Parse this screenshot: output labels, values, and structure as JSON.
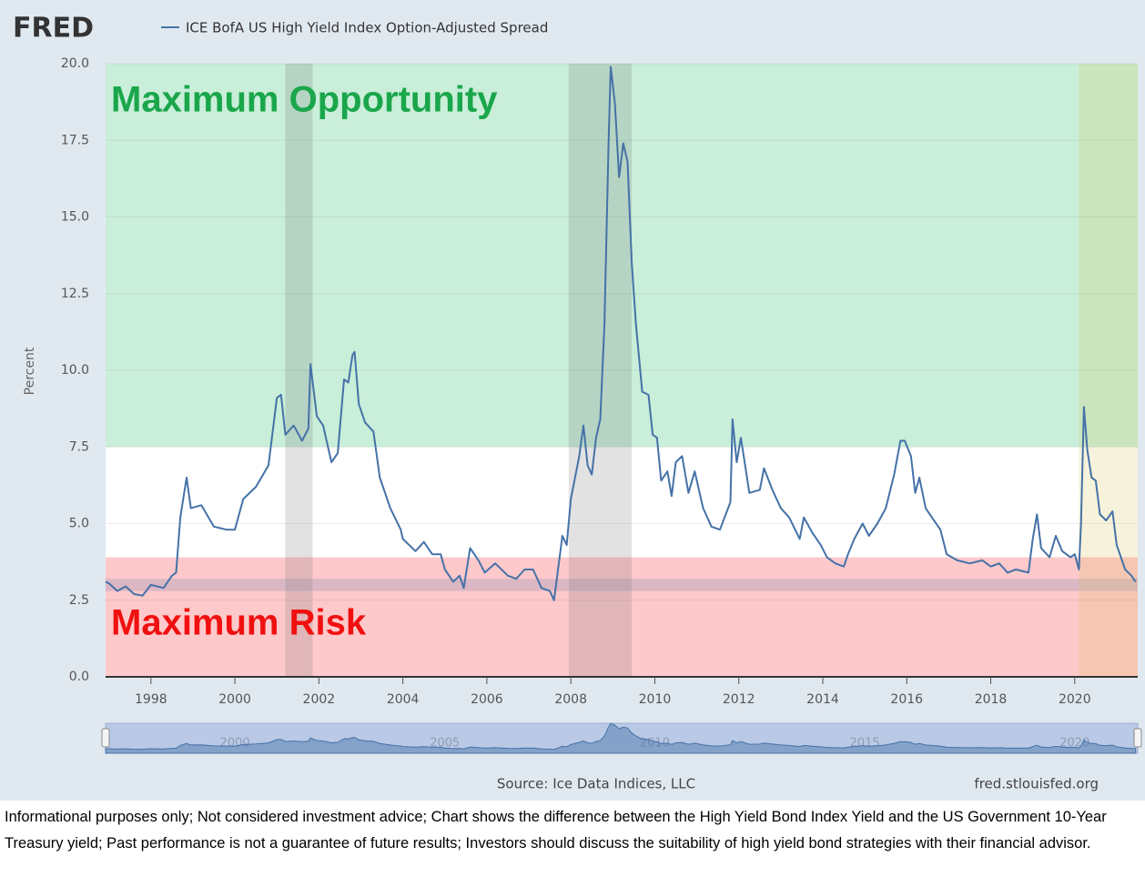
{
  "brand": "FRED",
  "chart_data": {
    "type": "line",
    "legend_label": "ICE BofA US High Yield Index Option-Adjusted Spread",
    "y_label": "Percent",
    "source": "Source: Ice Data Indices, LLC",
    "site": "fred.stlouisfed.org",
    "zones": [
      {
        "label": "Maximum Opportunity",
        "range": [
          7.5,
          20
        ],
        "color": "#c9eed9",
        "text_color": "#1aa64a"
      },
      {
        "label": "Maximum Risk",
        "range": [
          0,
          3.9
        ],
        "color": "#fdc9cb",
        "text_color": "#f01010"
      }
    ],
    "reference_band": {
      "range": [
        2.8,
        3.2
      ],
      "color": "rgba(120,130,170,0.25)"
    },
    "shaded_periods": [
      {
        "range": [
          2001.2,
          2001.85
        ],
        "color": "rgba(110,110,110,0.2)"
      },
      {
        "range": [
          2007.95,
          2009.45
        ],
        "color": "rgba(110,110,110,0.2)"
      },
      {
        "range": [
          2020.1,
          2021.5
        ],
        "color": "rgba(215,190,80,0.2)"
      }
    ],
    "xlim": [
      1996.92,
      2021.5
    ],
    "xticks": [
      1998,
      2000,
      2002,
      2004,
      2006,
      2008,
      2010,
      2012,
      2014,
      2016,
      2018,
      2020
    ],
    "ylim": [
      0,
      20
    ],
    "yticks": [
      {
        "value": 0,
        "label": "0.0"
      },
      2.5,
      {
        "value": 5,
        "label": "5.0"
      },
      7.5,
      {
        "value": 10,
        "label": "10.0"
      },
      12.5,
      {
        "value": 15,
        "label": "15.0"
      },
      17.5,
      {
        "value": 20,
        "label": "20.0"
      }
    ],
    "grid": true,
    "navigator_ticks": [
      2000,
      2005,
      2010,
      2015,
      2020
    ],
    "series": [
      {
        "name": "ICE BofA US High Yield Index Option-Adjusted Spread",
        "color": "#4572a7",
        "x": [
          1996.92,
          1997.0,
          1997.2,
          1997.4,
          1997.6,
          1997.8,
          1998.0,
          1998.3,
          1998.5,
          1998.6,
          1998.7,
          1998.85,
          1998.95,
          1999.2,
          1999.5,
          1999.8,
          2000.0,
          2000.2,
          2000.5,
          2000.8,
          2000.9,
          2001.0,
          2001.1,
          2001.2,
          2001.4,
          2001.6,
          2001.75,
          2001.8,
          2001.95,
          2002.1,
          2002.3,
          2002.45,
          2002.6,
          2002.7,
          2002.8,
          2002.85,
          2002.95,
          2003.1,
          2003.3,
          2003.45,
          2003.7,
          2003.95,
          2004.0,
          2004.3,
          2004.5,
          2004.7,
          2004.9,
          2005.0,
          2005.2,
          2005.35,
          2005.45,
          2005.6,
          2005.8,
          2005.95,
          2006.2,
          2006.5,
          2006.7,
          2006.9,
          2007.1,
          2007.3,
          2007.5,
          2007.6,
          2007.8,
          2007.9,
          2008.0,
          2008.2,
          2008.3,
          2008.4,
          2008.5,
          2008.6,
          2008.7,
          2008.8,
          2008.9,
          2008.95,
          2009.05,
          2009.15,
          2009.25,
          2009.35,
          2009.45,
          2009.55,
          2009.7,
          2009.85,
          2009.95,
          2010.05,
          2010.15,
          2010.3,
          2010.4,
          2010.5,
          2010.65,
          2010.8,
          2010.95,
          2011.15,
          2011.35,
          2011.55,
          2011.8,
          2011.85,
          2011.95,
          2012.05,
          2012.25,
          2012.5,
          2012.6,
          2012.8,
          2013.0,
          2013.2,
          2013.45,
          2013.55,
          2013.75,
          2013.95,
          2014.1,
          2014.3,
          2014.5,
          2014.6,
          2014.75,
          2014.95,
          2015.1,
          2015.3,
          2015.5,
          2015.7,
          2015.85,
          2015.95,
          2016.1,
          2016.2,
          2016.3,
          2016.45,
          2016.6,
          2016.8,
          2016.95,
          2017.2,
          2017.5,
          2017.8,
          2018.0,
          2018.2,
          2018.4,
          2018.6,
          2018.9,
          2019.0,
          2019.1,
          2019.2,
          2019.4,
          2019.55,
          2019.7,
          2019.9,
          2020.0,
          2020.1,
          2020.15,
          2020.22,
          2020.3,
          2020.4,
          2020.5,
          2020.6,
          2020.75,
          2020.9,
          2021.0,
          2021.2,
          2021.35,
          2021.45
        ],
        "values": [
          3.1,
          3.05,
          2.8,
          2.95,
          2.7,
          2.65,
          3.0,
          2.9,
          3.3,
          3.4,
          5.2,
          6.5,
          5.5,
          5.6,
          4.9,
          4.8,
          4.8,
          5.8,
          6.2,
          6.9,
          8.0,
          9.1,
          9.2,
          7.9,
          8.2,
          7.7,
          8.1,
          10.2,
          8.5,
          8.2,
          7.0,
          7.3,
          9.7,
          9.6,
          10.5,
          10.6,
          8.9,
          8.3,
          8.0,
          6.5,
          5.5,
          4.8,
          4.5,
          4.1,
          4.4,
          4.0,
          4.0,
          3.5,
          3.1,
          3.3,
          2.9,
          4.2,
          3.8,
          3.4,
          3.7,
          3.3,
          3.2,
          3.5,
          3.5,
          2.9,
          2.8,
          2.5,
          4.6,
          4.3,
          5.8,
          7.2,
          8.2,
          6.9,
          6.6,
          7.8,
          8.4,
          11.5,
          17.5,
          19.9,
          18.7,
          16.3,
          17.4,
          16.8,
          13.5,
          11.5,
          9.3,
          9.2,
          7.9,
          7.8,
          6.4,
          6.7,
          5.9,
          7.0,
          7.2,
          6.0,
          6.7,
          5.5,
          4.9,
          4.8,
          5.7,
          8.4,
          7.0,
          7.8,
          6.0,
          6.1,
          6.8,
          6.1,
          5.5,
          5.2,
          4.5,
          5.2,
          4.7,
          4.3,
          3.9,
          3.7,
          3.6,
          4.0,
          4.5,
          5.0,
          4.6,
          5.0,
          5.5,
          6.6,
          7.7,
          7.7,
          7.2,
          6.0,
          6.5,
          5.5,
          5.2,
          4.8,
          4.0,
          3.8,
          3.7,
          3.8,
          3.6,
          3.7,
          3.4,
          3.5,
          3.4,
          4.5,
          5.3,
          4.2,
          3.9,
          4.6,
          4.1,
          3.9,
          4.0,
          3.5,
          5.0,
          8.8,
          7.4,
          6.5,
          6.4,
          5.3,
          5.1,
          5.4,
          4.3,
          3.5,
          3.3,
          3.1
        ]
      }
    ]
  },
  "footnote": "Informational purposes only; Not considered investment advice; Chart shows the difference between the High Yield Bond Index Yield and the US Government 10-Year Treasury yield; Past performance is not a guarantee of future results; Investors should discuss the suitability of high yield bond strategies with their financial advisor."
}
